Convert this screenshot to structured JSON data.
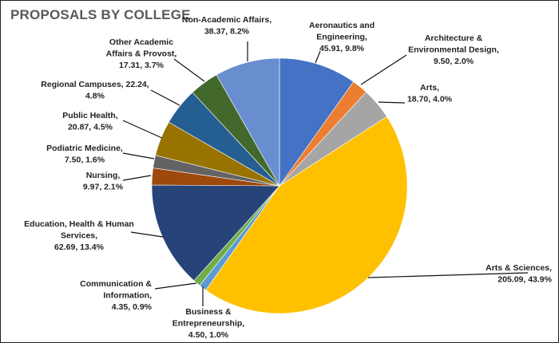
{
  "chart_data": {
    "type": "pie",
    "title": "PROPOSALS BY COLLEGE",
    "start_angle": "12 o'clock, clockwise",
    "slices": [
      {
        "label": "Aeronautics and Engineering",
        "value": 45.91,
        "percent": "9.8%",
        "color": "#4472C4",
        "text": [
          "Aeronautics and",
          "Engineering,",
          "45.91, 9.8%"
        ]
      },
      {
        "label": "Architecture & Environmental Design",
        "value": 9.5,
        "percent": "2.0%",
        "color": "#ED7D31",
        "text": [
          "Architecture &",
          "Environmental Design,",
          "9.50, 2.0%"
        ]
      },
      {
        "label": "Arts",
        "value": 18.7,
        "percent": "4.0%",
        "color": "#A5A5A5",
        "text": [
          "Arts,",
          "18.70, 4.0%"
        ]
      },
      {
        "label": "Arts & Sciences",
        "value": 205.09,
        "percent": "43.9%",
        "color": "#FFC000",
        "text": [
          "Arts & Sciences,",
          "205.09, 43.9%"
        ]
      },
      {
        "label": "Business & Entrepreneurship",
        "value": 4.5,
        "percent": "1.0%",
        "color": "#5B9BD5",
        "text": [
          "Business &",
          "Entrepreneurship,",
          "4.50, 1.0%"
        ]
      },
      {
        "label": "Communication & Information",
        "value": 4.35,
        "percent": "0.9%",
        "color": "#70AD47",
        "text": [
          "Communication &",
          "Information,",
          "4.35, 0.9%"
        ]
      },
      {
        "label": "Education, Health & Human Services",
        "value": 62.69,
        "percent": "13.4%",
        "color": "#264478",
        "text": [
          "Education, Health & Human",
          "Services,",
          "62.69, 13.4%"
        ]
      },
      {
        "label": "Nursing",
        "value": 9.97,
        "percent": "2.1%",
        "color": "#9E480E",
        "text": [
          "Nursing,",
          "9.97, 2.1%"
        ]
      },
      {
        "label": "Podiatric Medicine",
        "value": 7.5,
        "percent": "1.6%",
        "color": "#636363",
        "text": [
          "Podiatric Medicine,",
          "7.50, 1.6%"
        ]
      },
      {
        "label": "Public Health",
        "value": 20.87,
        "percent": "4.5%",
        "color": "#997300",
        "text": [
          "Public Health,",
          "20.87, 4.5%"
        ]
      },
      {
        "label": "Regional Campuses",
        "value": 22.24,
        "percent": "4.8%",
        "color": "#255E91",
        "text": [
          "Regional Campuses, 22.24,",
          "4.8%"
        ]
      },
      {
        "label": "Other Academic Affairs & Provost",
        "value": 17.31,
        "percent": "3.7%",
        "color": "#43682B",
        "text": [
          "Other Academic",
          "Affairs & Provost,",
          "17.31, 3.7%"
        ]
      },
      {
        "label": "Non-Academic Affairs",
        "value": 38.37,
        "percent": "8.2%",
        "color": "#698ED0",
        "text": [
          "Non-Academic Affairs,",
          "38.37, 8.2%"
        ]
      }
    ],
    "legend": "none (data labels with leader lines)"
  }
}
